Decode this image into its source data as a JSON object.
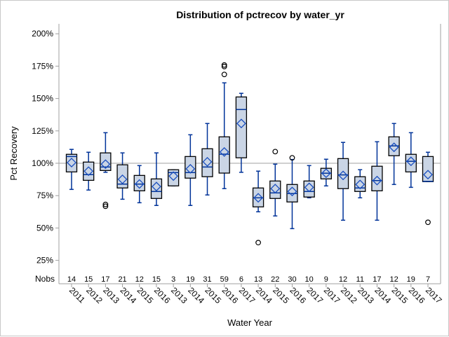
{
  "chart_data": {
    "type": "box",
    "title": "Distribution of pctrecov by water_yr",
    "xlabel": "Water Year",
    "ylabel": "Pct Recovery",
    "ylim": [
      20,
      203
    ],
    "yticks": [
      25,
      50,
      75,
      100,
      125,
      150,
      175,
      200
    ],
    "ytick_labels": [
      "25%",
      "50%",
      "75%",
      "100%",
      "125%",
      "150%",
      "175%",
      "200%"
    ],
    "reference_line": 100,
    "nobs_label": "Nobs",
    "colors": {
      "box_fill": "#cad5e5",
      "box_edge": "#000000",
      "whisker": "#003399",
      "mean_marker": "#1a4fbf",
      "reference": "#a0a0a0"
    },
    "categories": [
      "2011",
      "2012",
      "2013",
      "2014",
      "2015",
      "2016",
      "2013",
      "2014",
      "2015",
      "2016",
      "2017",
      "2014",
      "2015",
      "2016",
      "2017",
      "2017",
      "2012",
      "2013",
      "2014",
      "2015",
      "2016",
      "2017"
    ],
    "nobs": [
      14,
      15,
      17,
      21,
      12,
      15,
      3,
      19,
      31,
      59,
      6,
      13,
      22,
      30,
      10,
      9,
      12,
      11,
      17,
      12,
      19,
      7
    ],
    "boxes": [
      {
        "whisker_low": 79.8,
        "q1": 93.3,
        "median": 105.2,
        "q3": 106.9,
        "whisker_high": 110.7,
        "mean": 100.5,
        "outliers": []
      },
      {
        "whisker_low": 79.3,
        "q1": 86.8,
        "median": 91.2,
        "q3": 100.9,
        "whisker_high": 108.5,
        "mean": 93.9,
        "outliers": []
      },
      {
        "whisker_low": 93.0,
        "q1": 94.4,
        "median": 97.1,
        "q3": 108.0,
        "whisker_high": 123.6,
        "mean": 99.3,
        "outliers": [
          68.2,
          66.8
        ]
      },
      {
        "whisker_low": 72.2,
        "q1": 80.9,
        "median": 83.9,
        "q3": 98.8,
        "whisker_high": 108.0,
        "mean": 87.6,
        "outliers": []
      },
      {
        "whisker_low": 69.5,
        "q1": 78.7,
        "median": 83.9,
        "q3": 90.6,
        "whisker_high": 98.2,
        "mean": 84.0,
        "outliers": []
      },
      {
        "whisker_low": 67.4,
        "q1": 72.8,
        "median": 78.2,
        "q3": 87.9,
        "whisker_high": 108.0,
        "mean": 82.0,
        "outliers": []
      },
      {
        "whisker_low": 82.5,
        "q1": 82.5,
        "median": 92.8,
        "q3": 95.0,
        "whisker_high": 95.0,
        "mean": 90.1,
        "outliers": []
      },
      {
        "whisker_low": 67.4,
        "q1": 88.5,
        "median": 92.8,
        "q3": 105.2,
        "whisker_high": 122.0,
        "mean": 95.7,
        "outliers": []
      },
      {
        "whisker_low": 75.5,
        "q1": 89.6,
        "median": 97.1,
        "q3": 111.2,
        "whisker_high": 130.7,
        "mean": 101.1,
        "outliers": []
      },
      {
        "whisker_low": 80.4,
        "q1": 92.4,
        "median": 107.0,
        "q3": 120.4,
        "whisker_high": 162.1,
        "mean": 108.7,
        "outliers": [
          175.9,
          174.7,
          168.6
        ]
      },
      {
        "whisker_low": 93.0,
        "q1": 104.2,
        "median": 141.5,
        "q3": 151.2,
        "whisker_high": 154.0,
        "mean": 130.7,
        "outliers": []
      },
      {
        "whisker_low": 62.5,
        "q1": 66.3,
        "median": 73.3,
        "q3": 80.9,
        "whisker_high": 93.9,
        "mean": 73.3,
        "outliers": [
          38.7
        ]
      },
      {
        "whisker_low": 59.3,
        "q1": 72.8,
        "median": 77.1,
        "q3": 86.3,
        "whisker_high": 99.3,
        "mean": 80.4,
        "outliers": [
          109.0
        ]
      },
      {
        "whisker_low": 49.5,
        "q1": 70.1,
        "median": 76.6,
        "q3": 83.6,
        "whisker_high": 102.9,
        "mean": 78.2,
        "outliers": [
          104.2
        ]
      },
      {
        "whisker_low": 73.3,
        "q1": 73.9,
        "median": 78.2,
        "q3": 86.3,
        "whisker_high": 98.2,
        "mean": 81.4,
        "outliers": []
      },
      {
        "whisker_low": 82.5,
        "q1": 87.9,
        "median": 92.3,
        "q3": 96.1,
        "whisker_high": 103.1,
        "mean": 92.3,
        "outliers": []
      },
      {
        "whisker_low": 56.0,
        "q1": 80.4,
        "median": 91.0,
        "q3": 103.6,
        "whisker_high": 116.1,
        "mean": 90.6,
        "outliers": []
      },
      {
        "whisker_low": 73.3,
        "q1": 78.2,
        "median": 80.9,
        "q3": 89.6,
        "whisker_high": 95.0,
        "mean": 83.6,
        "outliers": []
      },
      {
        "whisker_low": 56.0,
        "q1": 78.7,
        "median": 86.6,
        "q3": 97.7,
        "whisker_high": 116.6,
        "mean": 86.6,
        "outliers": []
      },
      {
        "whisker_low": 83.6,
        "q1": 105.8,
        "median": 113.4,
        "q3": 120.4,
        "whisker_high": 130.7,
        "mean": 112.3,
        "outliers": []
      },
      {
        "whisker_low": 81.4,
        "q1": 93.3,
        "median": 101.5,
        "q3": 106.9,
        "whisker_high": 123.6,
        "mean": 101.5,
        "outliers": []
      },
      {
        "whisker_low": 85.8,
        "q1": 85.8,
        "median": 86.0,
        "q3": 105.2,
        "whisker_high": 108.5,
        "mean": 91.2,
        "outliers": [
          54.4
        ]
      }
    ]
  }
}
